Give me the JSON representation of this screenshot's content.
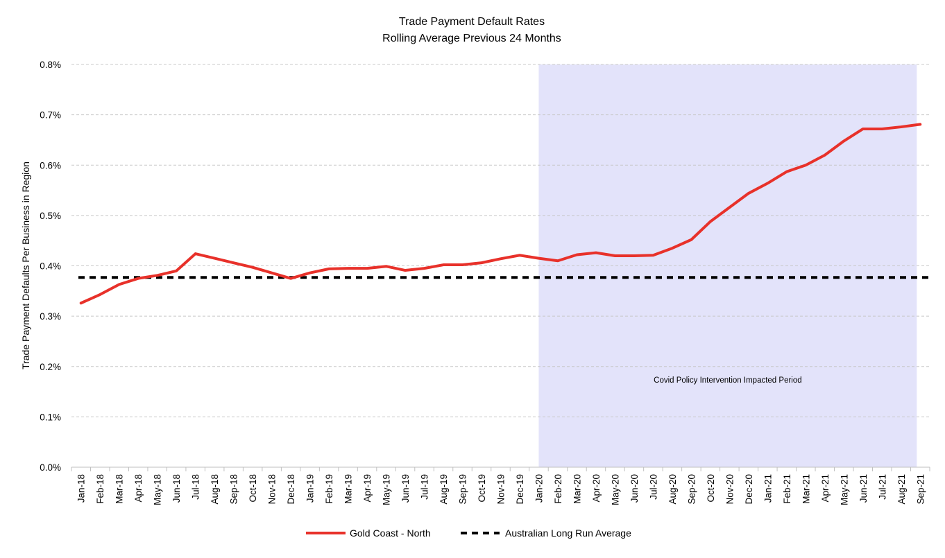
{
  "chart_data": {
    "type": "line",
    "title": "Trade Payment Default Rates",
    "subtitle": "Rolling Average Previous 24 Months",
    "xlabel": "",
    "ylabel": "Trade Payment Defaults Per Business in Region",
    "ylim": [
      0,
      0.8
    ],
    "yticks": [
      0,
      0.1,
      0.2,
      0.3,
      0.4,
      0.5,
      0.6,
      0.7,
      0.8
    ],
    "ytick_labels": [
      "0.0%",
      "0.1%",
      "0.2%",
      "0.3%",
      "0.4%",
      "0.5%",
      "0.6%",
      "0.7%",
      "0.8%"
    ],
    "grid": true,
    "legend_position": "bottom",
    "categories": [
      "Jan-18",
      "Feb-18",
      "Mar-18",
      "Apr-18",
      "May-18",
      "Jun-18",
      "Jul-18",
      "Aug-18",
      "Sep-18",
      "Oct-18",
      "Nov-18",
      "Dec-18",
      "Jan-19",
      "Feb-19",
      "Mar-19",
      "Apr-19",
      "May-19",
      "Jun-19",
      "Jul-19",
      "Aug-19",
      "Sep-19",
      "Oct-19",
      "Nov-19",
      "Dec-19",
      "Jan-20",
      "Feb-20",
      "Mar-20",
      "Apr-20",
      "May-20",
      "Jun-20",
      "Jul-20",
      "Aug-20",
      "Sep-20",
      "Oct-20",
      "Nov-20",
      "Dec-20",
      "Jan-21",
      "Feb-21",
      "Mar-21",
      "Apr-21",
      "May-21",
      "Jun-21",
      "Jul-21",
      "Aug-21",
      "Sep-21"
    ],
    "series": [
      {
        "name": "Gold Coast - North",
        "color": "#e8312a",
        "style": "solid",
        "values": [
          0.326,
          0.343,
          0.363,
          0.375,
          0.381,
          0.39,
          0.424,
          0.415,
          0.406,
          0.397,
          0.386,
          0.375,
          0.386,
          0.394,
          0.395,
          0.395,
          0.399,
          0.391,
          0.395,
          0.402,
          0.402,
          0.406,
          0.414,
          0.421,
          0.415,
          0.41,
          0.422,
          0.426,
          0.42,
          0.42,
          0.421,
          0.435,
          0.452,
          0.488,
          0.516,
          0.544,
          0.564,
          0.587,
          0.6,
          0.62,
          0.648,
          0.672,
          0.672,
          0.676,
          0.681
        ]
      },
      {
        "name": "Australian Long Run Average",
        "color": "#000000",
        "style": "dashed",
        "values": [
          0.377,
          0.377,
          0.377,
          0.377,
          0.377,
          0.377,
          0.377,
          0.377,
          0.377,
          0.377,
          0.377,
          0.377,
          0.377,
          0.377,
          0.377,
          0.377,
          0.377,
          0.377,
          0.377,
          0.377,
          0.377,
          0.377,
          0.377,
          0.377,
          0.377,
          0.377,
          0.377,
          0.377,
          0.377,
          0.377,
          0.377,
          0.377,
          0.377,
          0.377,
          0.377,
          0.377,
          0.377,
          0.377,
          0.377,
          0.377,
          0.377,
          0.377,
          0.377,
          0.377,
          0.377
        ]
      }
    ],
    "shaded_region": {
      "from": "Jan-20",
      "to": "Sep-21",
      "color": "#e3e3fa",
      "label": "Covid Policy Intervention Impacted Period"
    }
  }
}
